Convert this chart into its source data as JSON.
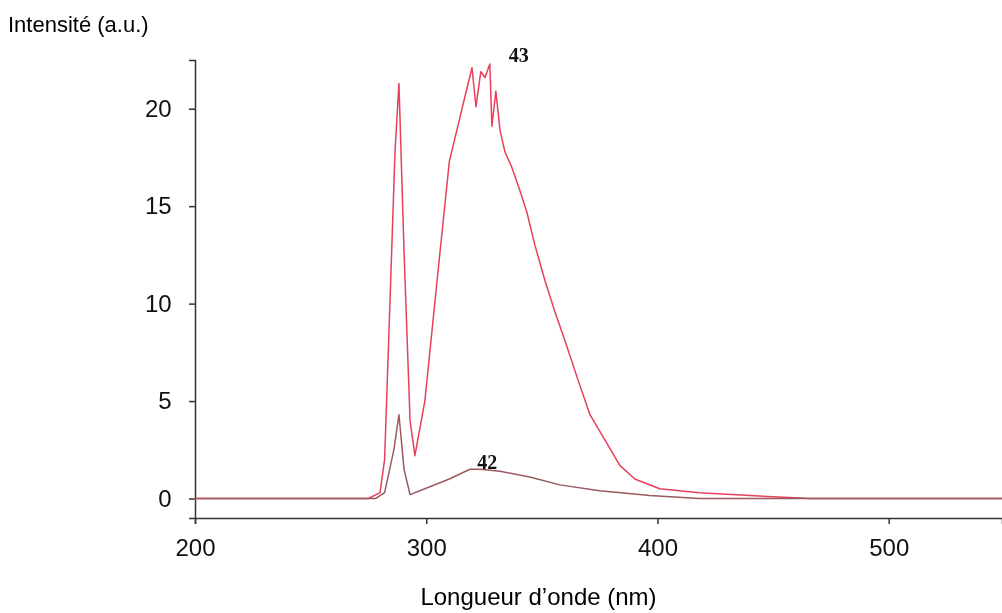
{
  "chart_data": {
    "type": "line",
    "xlabel": "Longueur d’onde (nm)",
    "ylabel": "Intensité (a.u.)",
    "xlim": [
      200,
      549
    ],
    "ylim": [
      -1,
      22.5
    ],
    "xticks": [
      200,
      300,
      400,
      500
    ],
    "yticks": [
      0,
      5,
      10,
      15,
      20
    ],
    "grid": false,
    "legend": false,
    "marker": "none",
    "line_style": "solid",
    "series": [
      {
        "name": "43",
        "color": "#e8405a",
        "x": [
          200,
          275,
          280,
          282,
          284.3,
          286.5,
          288.2,
          290.4,
          293,
          295.1,
          299.4,
          306,
          310,
          316.7,
          319.8,
          321.5,
          323.6,
          325.4,
          327.5,
          328.4,
          330.1,
          331.9,
          334,
          337,
          340.5,
          343.5,
          347,
          351.3,
          355.6,
          360,
          365.6,
          370.8,
          377.3,
          383.7,
          390.2,
          401,
          418,
          440,
          466,
          500,
          549
        ],
        "values": [
          0,
          0,
          0.3,
          2,
          10,
          17.8,
          21.3,
          12.7,
          4,
          2.2,
          5,
          12.7,
          17.3,
          20.6,
          22.1,
          20.1,
          21.9,
          21.6,
          22.3,
          19.1,
          20.9,
          18.9,
          17.8,
          17,
          15.8,
          14.7,
          13,
          11.2,
          9.6,
          8.1,
          6.1,
          4.3,
          3,
          1.7,
          1,
          0.5,
          0.3,
          0.15,
          0,
          0,
          0
        ]
      },
      {
        "name": "42",
        "color": "#9a5a60",
        "x": [
          200,
          278,
          282,
          286,
          288.2,
          290.4,
          293,
          299.4,
          310,
          318.9,
          323.2,
          331.9,
          344.8,
          357.8,
          375,
          396.7,
          418,
          466,
          549
        ],
        "values": [
          0,
          0,
          0.3,
          2.5,
          4.3,
          1.5,
          0.2,
          0.5,
          1,
          1.5,
          1.5,
          1.4,
          1.1,
          0.7,
          0.4,
          0.15,
          0,
          0,
          0
        ]
      }
    ]
  }
}
